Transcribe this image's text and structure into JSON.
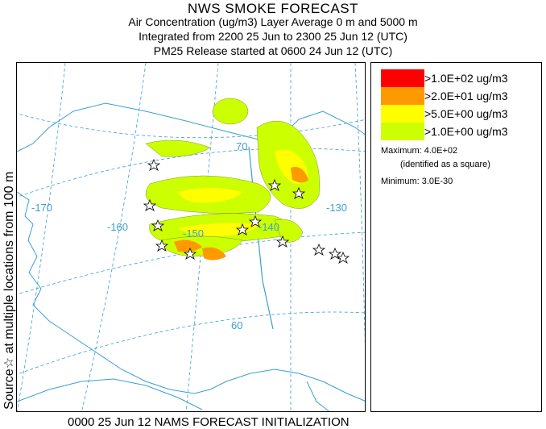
{
  "header": {
    "title": "NWS SMOKE FORECAST",
    "line2": "Air Concentration (ug/m3) Layer Average    0 m and  5000 m",
    "line3": "Integrated from 2200 25 Jun to 2300 25 Jun 12 (UTC)",
    "line4": "PM25 Release started at 0600 24 Jun 12 (UTC)"
  },
  "side_label": "Source☆ at multiple locations   from  100 m",
  "legend": {
    "items": [
      {
        "label": ">1.0E+02 ug/m3",
        "color": "#ff0000"
      },
      {
        "label": ">2.0E+01 ug/m3",
        "color": "#ff9900"
      },
      {
        "label": ">5.0E+00 ug/m3",
        "color": "#ffff00"
      },
      {
        "label": ">1.0E+00 ug/m3",
        "color": "#ccff00"
      }
    ],
    "maximum": "Maximum: 4.0E+02",
    "maximum_note": "(identified as a square)",
    "minimum": "Minimum: 3.0E-30"
  },
  "map": {
    "grid_labels": {
      "lat70": "70",
      "lat60": "60",
      "lon170": "-170",
      "lon160": "-160",
      "lon150": "-150",
      "lon140": "-140",
      "lon130": "-130"
    },
    "graticule_color": "#3a9fd4",
    "coast_color": "#3a9fd4"
  },
  "footer": {
    "caption": "0000 25 Jun 12 NAMS FORECAST INITIALIZATION"
  }
}
